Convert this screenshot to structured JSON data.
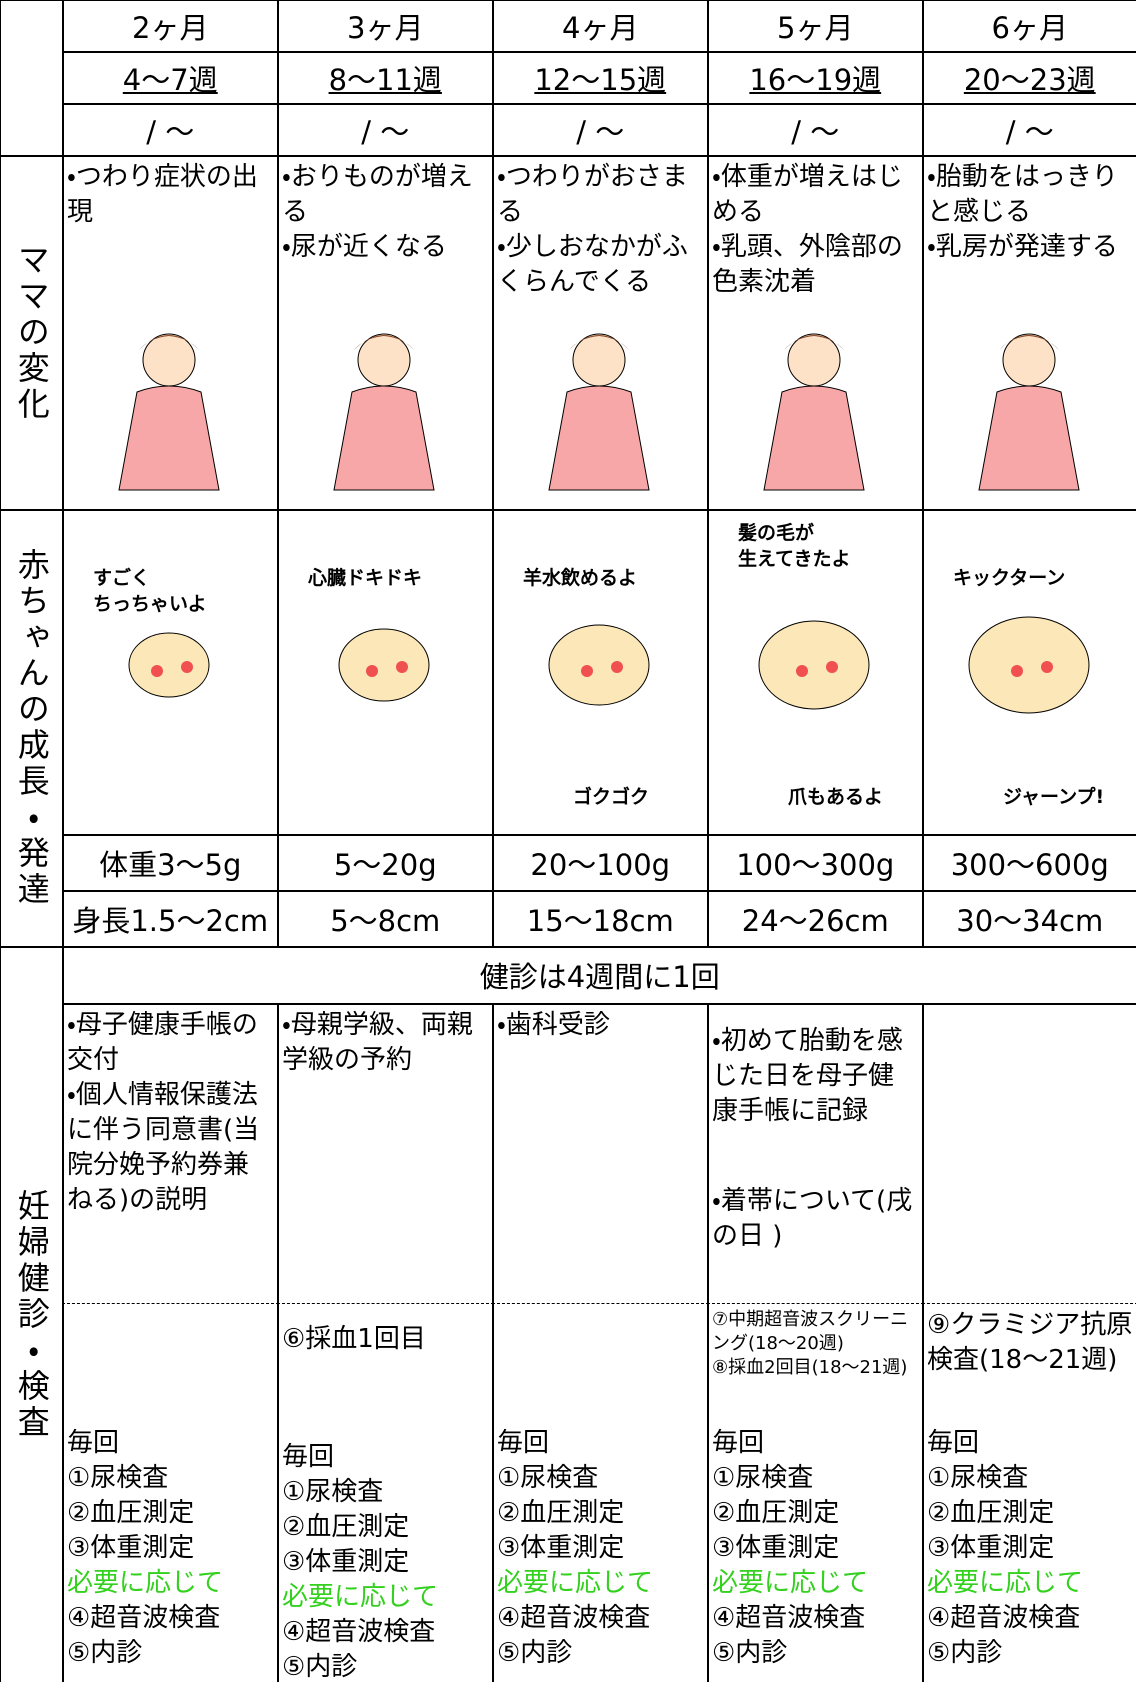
{
  "row_labels": {
    "mama": "ママの変化",
    "baby": "赤ちゃんの成長・発達",
    "checkup": "妊婦健診・検査"
  },
  "checkup_frequency": "健診は4週間に1回",
  "columns": [
    {
      "month": "2ヶ月",
      "weeks": "4〜7週",
      "dates": "/ 〜",
      "mama": [
        "・つわり症状の出現"
      ],
      "baby_top": "すごく\nちっちゃいよ",
      "weight": "体重3〜5g",
      "length": "身長1.5〜2cm",
      "checkup_items": [
        "・母子健康手帳の交付",
        "・個人情報保護法に伴う同意書(当院分娩予約券兼ねる)の説明"
      ],
      "tests": [],
      "routine_label": "毎回",
      "routine": [
        "①尿検査",
        "②血圧測定",
        "③体重測定"
      ],
      "optional_label": "必要に応じて",
      "optional": [
        "④超音波検査",
        "⑤内診"
      ]
    },
    {
      "month": "3ヶ月",
      "weeks": "8〜11週",
      "dates": "/ 〜",
      "mama": [
        "・おりものが増える",
        "・尿が近くなる"
      ],
      "baby_top": "心臓ドキドキ",
      "weight": "5〜20g",
      "length": "5〜8cm",
      "checkup_items": [
        "・母親学級、両親学級の予約"
      ],
      "tests": [
        "⑥採血1回目"
      ],
      "routine_label": "毎回",
      "routine": [
        "①尿検査",
        "②血圧測定",
        "③体重測定"
      ],
      "optional_label": "必要に応じて",
      "optional": [
        "④超音波検査",
        "⑤内診"
      ]
    },
    {
      "month": "4ヶ月",
      "weeks": "12〜15週",
      "dates": "/ 〜",
      "mama": [
        "・つわりがおさまる",
        "・少しおなかがふくらんでくる"
      ],
      "baby_top": "羊水飲めるよ",
      "baby_bottom": "ゴクゴク",
      "weight": "20〜100g",
      "length": "15〜18cm",
      "checkup_items": [
        "・歯科受診"
      ],
      "tests": [],
      "routine_label": "毎回",
      "routine": [
        "①尿検査",
        "②血圧測定",
        "③体重測定"
      ],
      "optional_label": "必要に応じて",
      "optional": [
        "④超音波検査",
        "⑤内診"
      ]
    },
    {
      "month": "5ヶ月",
      "weeks": "16〜19週",
      "dates": "/ 〜",
      "mama": [
        "・体重が増えはじめる",
        "・乳頭、外陰部の色素沈着"
      ],
      "baby_top": "髪の毛が\n生えてきたよ",
      "baby_bottom": "爪もあるよ",
      "weight": "100〜300g",
      "length": "24〜26cm",
      "checkup_items": [
        "・初めて胎動を感じた日を母子健康手帳に記録",
        "・着帯について(戌の日 )"
      ],
      "tests": [
        "⑦中期超音波スクリーニング(18〜20週)",
        "⑧採血2回目(18〜21週)"
      ],
      "routine_label": "毎回",
      "routine": [
        "①尿検査",
        "②血圧測定",
        "③体重測定"
      ],
      "optional_label": "必要に応じて",
      "optional": [
        "④超音波検査",
        "⑤内診"
      ]
    },
    {
      "month": "6ヶ月",
      "weeks": "20〜23週",
      "dates": "/ 〜",
      "mama": [
        "・胎動をはっきりと感じる",
        "・乳房が発達する"
      ],
      "baby_top": "キックターン",
      "baby_bottom": "ジャーンプ!",
      "weight": "300〜600g",
      "length": "30〜34cm",
      "checkup_items": [],
      "tests": [
        "⑨クラミジア抗原検査(18〜21週)"
      ],
      "routine_label": "毎回",
      "routine": [
        "①尿検査",
        "②血圧測定",
        "③体重測定"
      ],
      "optional_label": "必要に応じて",
      "optional": [
        "④超音波検査",
        "⑤内診"
      ]
    }
  ]
}
